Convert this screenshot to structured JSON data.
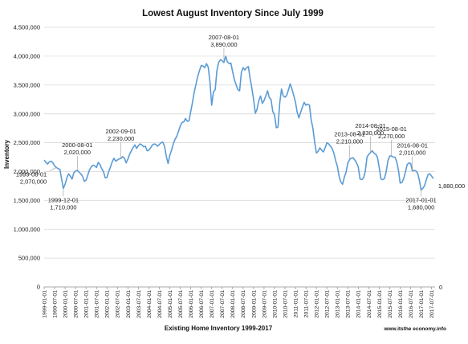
{
  "chart_data": {
    "type": "line",
    "title": "Lowest August Inventory Since July 1999",
    "xlabel": "Existing Home Inventory 1999-2017",
    "ylabel": "Inventory",
    "credit": "www.itsthe economy.info",
    "right_axis_zero": "0",
    "ylim": [
      0,
      4500000
    ],
    "yticks": [
      "0",
      "500,000",
      "1,000,000",
      "1,500,000",
      "2,000,000",
      "2,500,000",
      "3,000,000",
      "3,500,000",
      "4,000,000",
      "4,500,000"
    ],
    "xticks": [
      "1999-01-01",
      "1999-07-01",
      "2000-01-01",
      "2000-07-01",
      "2001-01-01",
      "2001-07-01",
      "2002-01-01",
      "2002-07-01",
      "2003-01-01",
      "2003-07-01",
      "2004-01-01",
      "2004-07-01",
      "2005-01-01",
      "2005-07-01",
      "2006-01-01",
      "2006-07-01",
      "2007-01-01",
      "2007-07-01",
      "2008-01-01",
      "2008-07-01",
      "2009-01-01",
      "2009-07-01",
      "2010-01-01",
      "2010-07-01",
      "2011-01-01",
      "2011-07-01",
      "2012-01-01",
      "2012-07-01",
      "2013-01-01",
      "2013-07-01",
      "2014-01-01",
      "2014-07-01",
      "2015-01-01",
      "2015-07-01",
      "2016-01-01",
      "2016-07-01",
      "2017-01-01",
      "2017-07-01"
    ],
    "grid": true,
    "color": "#5b9bd5",
    "series": [
      {
        "points": [
          [
            "1999-01",
            2200000
          ],
          [
            "1999-02",
            2160000
          ],
          [
            "1999-03",
            2130000
          ],
          [
            "1999-04",
            2170000
          ],
          [
            "1999-05",
            2180000
          ],
          [
            "1999-06",
            2150000
          ],
          [
            "1999-07",
            2100000
          ],
          [
            "1999-08",
            2070000
          ],
          [
            "1999-09",
            2050000
          ],
          [
            "1999-10",
            2040000
          ],
          [
            "1999-11",
            1870000
          ],
          [
            "1999-12",
            1710000
          ],
          [
            "2000-01",
            1780000
          ],
          [
            "2000-02",
            1890000
          ],
          [
            "2000-03",
            1960000
          ],
          [
            "2000-04",
            1920000
          ],
          [
            "2000-05",
            1870000
          ],
          [
            "2000-06",
            1980000
          ],
          [
            "2000-07",
            2010000
          ],
          [
            "2000-08",
            2020000
          ],
          [
            "2000-09",
            1990000
          ],
          [
            "2000-10",
            1960000
          ],
          [
            "2000-11",
            1920000
          ],
          [
            "2000-12",
            1830000
          ],
          [
            "2001-01",
            1850000
          ],
          [
            "2001-02",
            1940000
          ],
          [
            "2001-03",
            2030000
          ],
          [
            "2001-04",
            2080000
          ],
          [
            "2001-05",
            2110000
          ],
          [
            "2001-06",
            2100000
          ],
          [
            "2001-07",
            2070000
          ],
          [
            "2001-08",
            2160000
          ],
          [
            "2001-09",
            2120000
          ],
          [
            "2001-10",
            2050000
          ],
          [
            "2001-11",
            2000000
          ],
          [
            "2001-12",
            1890000
          ],
          [
            "2002-01",
            1900000
          ],
          [
            "2002-02",
            2000000
          ],
          [
            "2002-03",
            2080000
          ],
          [
            "2002-04",
            2170000
          ],
          [
            "2002-05",
            2230000
          ],
          [
            "2002-06",
            2180000
          ],
          [
            "2002-07",
            2200000
          ],
          [
            "2002-08",
            2220000
          ],
          [
            "2002-09",
            2230000
          ],
          [
            "2002-10",
            2260000
          ],
          [
            "2002-11",
            2230000
          ],
          [
            "2002-12",
            2150000
          ],
          [
            "2003-01",
            2220000
          ],
          [
            "2003-02",
            2300000
          ],
          [
            "2003-03",
            2360000
          ],
          [
            "2003-04",
            2420000
          ],
          [
            "2003-05",
            2460000
          ],
          [
            "2003-06",
            2400000
          ],
          [
            "2003-07",
            2450000
          ],
          [
            "2003-08",
            2480000
          ],
          [
            "2003-09",
            2460000
          ],
          [
            "2003-10",
            2430000
          ],
          [
            "2003-11",
            2440000
          ],
          [
            "2003-12",
            2360000
          ],
          [
            "2004-01",
            2370000
          ],
          [
            "2004-02",
            2410000
          ],
          [
            "2004-03",
            2460000
          ],
          [
            "2004-04",
            2480000
          ],
          [
            "2004-05",
            2470000
          ],
          [
            "2004-06",
            2440000
          ],
          [
            "2004-07",
            2470000
          ],
          [
            "2004-08",
            2500000
          ],
          [
            "2004-09",
            2510000
          ],
          [
            "2004-10",
            2440000
          ],
          [
            "2004-11",
            2260000
          ],
          [
            "2004-12",
            2140000
          ],
          [
            "2005-01",
            2280000
          ],
          [
            "2005-02",
            2370000
          ],
          [
            "2005-03",
            2480000
          ],
          [
            "2005-04",
            2560000
          ],
          [
            "2005-05",
            2610000
          ],
          [
            "2005-06",
            2700000
          ],
          [
            "2005-07",
            2790000
          ],
          [
            "2005-08",
            2850000
          ],
          [
            "2005-09",
            2860000
          ],
          [
            "2005-10",
            2920000
          ],
          [
            "2005-11",
            2870000
          ],
          [
            "2005-12",
            2880000
          ],
          [
            "2006-01",
            3040000
          ],
          [
            "2006-02",
            3200000
          ],
          [
            "2006-03",
            3380000
          ],
          [
            "2006-04",
            3510000
          ],
          [
            "2006-05",
            3650000
          ],
          [
            "2006-06",
            3750000
          ],
          [
            "2006-07",
            3840000
          ],
          [
            "2006-08",
            3830000
          ],
          [
            "2006-09",
            3800000
          ],
          [
            "2006-10",
            3870000
          ],
          [
            "2006-11",
            3810000
          ],
          [
            "2006-12",
            3560000
          ],
          [
            "2007-01",
            3150000
          ],
          [
            "2007-02",
            3380000
          ],
          [
            "2007-03",
            3420000
          ],
          [
            "2007-04",
            3750000
          ],
          [
            "2007-05",
            3890000
          ],
          [
            "2007-06",
            3940000
          ],
          [
            "2007-07",
            3920000
          ],
          [
            "2007-08",
            3890000
          ],
          [
            "2007-09",
            4000000
          ],
          [
            "2007-10",
            3900000
          ],
          [
            "2007-11",
            3870000
          ],
          [
            "2007-12",
            3880000
          ],
          [
            "2008-01",
            3730000
          ],
          [
            "2008-02",
            3590000
          ],
          [
            "2008-03",
            3500000
          ],
          [
            "2008-04",
            3420000
          ],
          [
            "2008-05",
            3400000
          ],
          [
            "2008-06",
            3720000
          ],
          [
            "2008-07",
            3800000
          ],
          [
            "2008-08",
            3760000
          ],
          [
            "2008-09",
            3800000
          ],
          [
            "2008-10",
            3820000
          ],
          [
            "2008-11",
            3620000
          ],
          [
            "2008-12",
            3450000
          ],
          [
            "2009-01",
            3250000
          ],
          [
            "2009-02",
            3010000
          ],
          [
            "2009-03",
            3080000
          ],
          [
            "2009-04",
            3230000
          ],
          [
            "2009-05",
            3310000
          ],
          [
            "2009-06",
            3180000
          ],
          [
            "2009-07",
            3230000
          ],
          [
            "2009-08",
            3310000
          ],
          [
            "2009-09",
            3400000
          ],
          [
            "2009-10",
            3280000
          ],
          [
            "2009-11",
            3250000
          ],
          [
            "2009-12",
            3040000
          ],
          [
            "2010-01",
            2980000
          ],
          [
            "2010-02",
            2760000
          ],
          [
            "2010-03",
            2770000
          ],
          [
            "2010-04",
            3190000
          ],
          [
            "2010-05",
            3430000
          ],
          [
            "2010-06",
            3310000
          ],
          [
            "2010-07",
            3290000
          ],
          [
            "2010-08",
            3320000
          ],
          [
            "2010-09",
            3420000
          ],
          [
            "2010-10",
            3520000
          ],
          [
            "2010-11",
            3430000
          ],
          [
            "2010-12",
            3320000
          ],
          [
            "2011-01",
            3200000
          ],
          [
            "2011-02",
            3030000
          ],
          [
            "2011-03",
            2930000
          ],
          [
            "2011-04",
            3030000
          ],
          [
            "2011-05",
            3120000
          ],
          [
            "2011-06",
            3200000
          ],
          [
            "2011-07",
            3150000
          ],
          [
            "2011-08",
            3170000
          ],
          [
            "2011-09",
            3150000
          ],
          [
            "2011-10",
            2900000
          ],
          [
            "2011-11",
            2750000
          ],
          [
            "2011-12",
            2510000
          ],
          [
            "2012-01",
            2320000
          ],
          [
            "2012-02",
            2350000
          ],
          [
            "2012-03",
            2410000
          ],
          [
            "2012-04",
            2370000
          ],
          [
            "2012-05",
            2340000
          ],
          [
            "2012-06",
            2410000
          ],
          [
            "2012-07",
            2500000
          ],
          [
            "2012-08",
            2480000
          ],
          [
            "2012-09",
            2440000
          ],
          [
            "2012-10",
            2400000
          ],
          [
            "2012-11",
            2320000
          ],
          [
            "2012-12",
            2190000
          ],
          [
            "2013-01",
            2090000
          ],
          [
            "2013-02",
            1920000
          ],
          [
            "2013-03",
            1820000
          ],
          [
            "2013-04",
            1780000
          ],
          [
            "2013-05",
            1900000
          ],
          [
            "2013-06",
            1990000
          ],
          [
            "2013-07",
            2150000
          ],
          [
            "2013-08",
            2210000
          ],
          [
            "2013-09",
            2230000
          ],
          [
            "2013-10",
            2240000
          ],
          [
            "2013-11",
            2200000
          ],
          [
            "2013-12",
            2150000
          ],
          [
            "2014-01",
            2080000
          ],
          [
            "2014-02",
            1870000
          ],
          [
            "2014-03",
            1860000
          ],
          [
            "2014-04",
            1890000
          ],
          [
            "2014-05",
            2000000
          ],
          [
            "2014-06",
            2250000
          ],
          [
            "2014-07",
            2300000
          ],
          [
            "2014-08",
            2330000
          ],
          [
            "2014-09",
            2360000
          ],
          [
            "2014-10",
            2320000
          ],
          [
            "2014-11",
            2300000
          ],
          [
            "2014-12",
            2240000
          ],
          [
            "2015-01",
            2070000
          ],
          [
            "2015-02",
            1870000
          ],
          [
            "2015-03",
            1860000
          ],
          [
            "2015-04",
            1880000
          ],
          [
            "2015-05",
            2000000
          ],
          [
            "2015-06",
            2190000
          ],
          [
            "2015-07",
            2270000
          ],
          [
            "2015-08",
            2270000
          ],
          [
            "2015-09",
            2250000
          ],
          [
            "2015-10",
            2250000
          ],
          [
            "2015-11",
            2170000
          ],
          [
            "2015-12",
            2030000
          ],
          [
            "2016-01",
            1800000
          ],
          [
            "2016-02",
            1810000
          ],
          [
            "2016-03",
            1880000
          ],
          [
            "2016-04",
            1990000
          ],
          [
            "2016-05",
            2120000
          ],
          [
            "2016-06",
            2150000
          ],
          [
            "2016-07",
            2140000
          ],
          [
            "2016-08",
            2010000
          ],
          [
            "2016-09",
            2020000
          ],
          [
            "2016-10",
            2010000
          ],
          [
            "2016-11",
            1970000
          ],
          [
            "2016-12",
            1850000
          ],
          [
            "2017-01",
            1680000
          ],
          [
            "2017-02",
            1710000
          ],
          [
            "2017-03",
            1760000
          ],
          [
            "2017-04",
            1860000
          ],
          [
            "2017-05",
            1950000
          ],
          [
            "2017-06",
            1960000
          ],
          [
            "2017-07",
            1920000
          ],
          [
            "2017-08",
            1880000
          ]
        ]
      }
    ],
    "annotations": [
      {
        "date": "2007-08-01",
        "value": "3,890,000",
        "at": "2007-08",
        "anchor": "middle",
        "dy": -28
      },
      {
        "date": "2002-09-01",
        "value": "2,230,000",
        "at": "2002-09",
        "anchor": "middle",
        "dy": -30
      },
      {
        "date": "2000-08-01",
        "value": "2,020,000",
        "at": "2000-08",
        "anchor": "middle",
        "dy": -28
      },
      {
        "date": "1999-08-01",
        "value": "2,070,000",
        "at": "1999-08",
        "anchor": "end",
        "dy": 12
      },
      {
        "date": "1999-12-01",
        "value": "1,710,000",
        "at": "1999-12",
        "anchor": "middle",
        "dy": 18
      },
      {
        "date": "2013-08-01",
        "value": "2,210,000",
        "at": "2013-08",
        "anchor": "middle",
        "dy": -28
      },
      {
        "date": "2014-08-01",
        "value": "2,330,000",
        "at": "2014-08",
        "anchor": "middle",
        "dy": -30
      },
      {
        "date": "2015-08-01",
        "value": "2,270,000",
        "at": "2015-08",
        "anchor": "middle",
        "dy": -30
      },
      {
        "date": "2016-08-01",
        "value": "2,010,000",
        "at": "2016-08",
        "anchor": "middle",
        "dy": -28
      },
      {
        "date": "2017-01-01",
        "value": "1,680,000",
        "at": "2017-01",
        "anchor": "middle",
        "dy": 16
      }
    ],
    "end_label": "1,880,000"
  }
}
